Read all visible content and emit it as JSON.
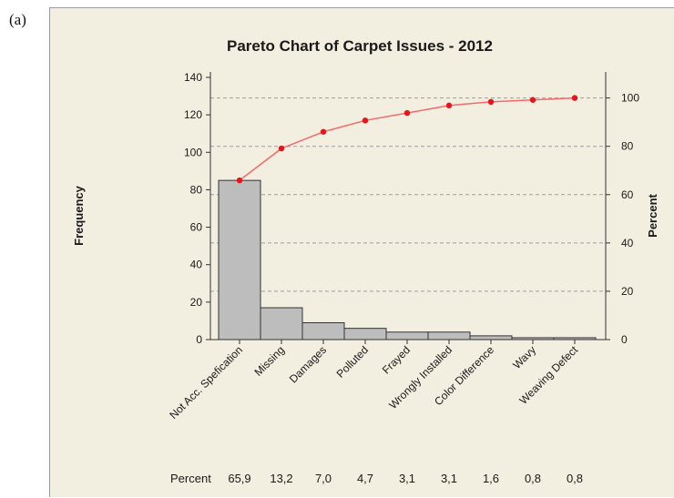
{
  "panel_label": "(a)",
  "chart_data": {
    "type": "pareto",
    "title": "Pareto Chart of Carpet Issues - 2012",
    "ylabel_left": "Frequency",
    "ylabel_right": "Percent",
    "ylim_left": [
      0,
      140
    ],
    "ylim_right": [
      0,
      100
    ],
    "yticks_left": [
      0,
      20,
      40,
      60,
      80,
      100,
      120,
      140
    ],
    "yticks_right": [
      0,
      20,
      40,
      60,
      80,
      100
    ],
    "categories": [
      "Not Acc. Spefication",
      "Missing",
      "Damages",
      "Polluted",
      "Frayed",
      "Wrongly Installed",
      "Color Difference",
      "Wavy",
      "Weaving Defect"
    ],
    "frequency": [
      85,
      17,
      9,
      6,
      4,
      4,
      2,
      1,
      1
    ],
    "cumulative_percent": [
      65.9,
      79.1,
      86.0,
      90.7,
      93.8,
      96.9,
      98.4,
      99.2,
      100.0
    ],
    "percent_row_label": "Percent",
    "percent_labels": [
      "65,9",
      "13,2",
      "7,0",
      "4,7",
      "3,1",
      "3,1",
      "1,6",
      "0,8",
      "0,8"
    ],
    "grid": "horizontal dashed",
    "colors": {
      "bars": "#bdbdbd",
      "bar_stroke": "#333333",
      "line": "#f26b6b",
      "points": "#e8141a",
      "grid": "#9e9e9e"
    }
  }
}
